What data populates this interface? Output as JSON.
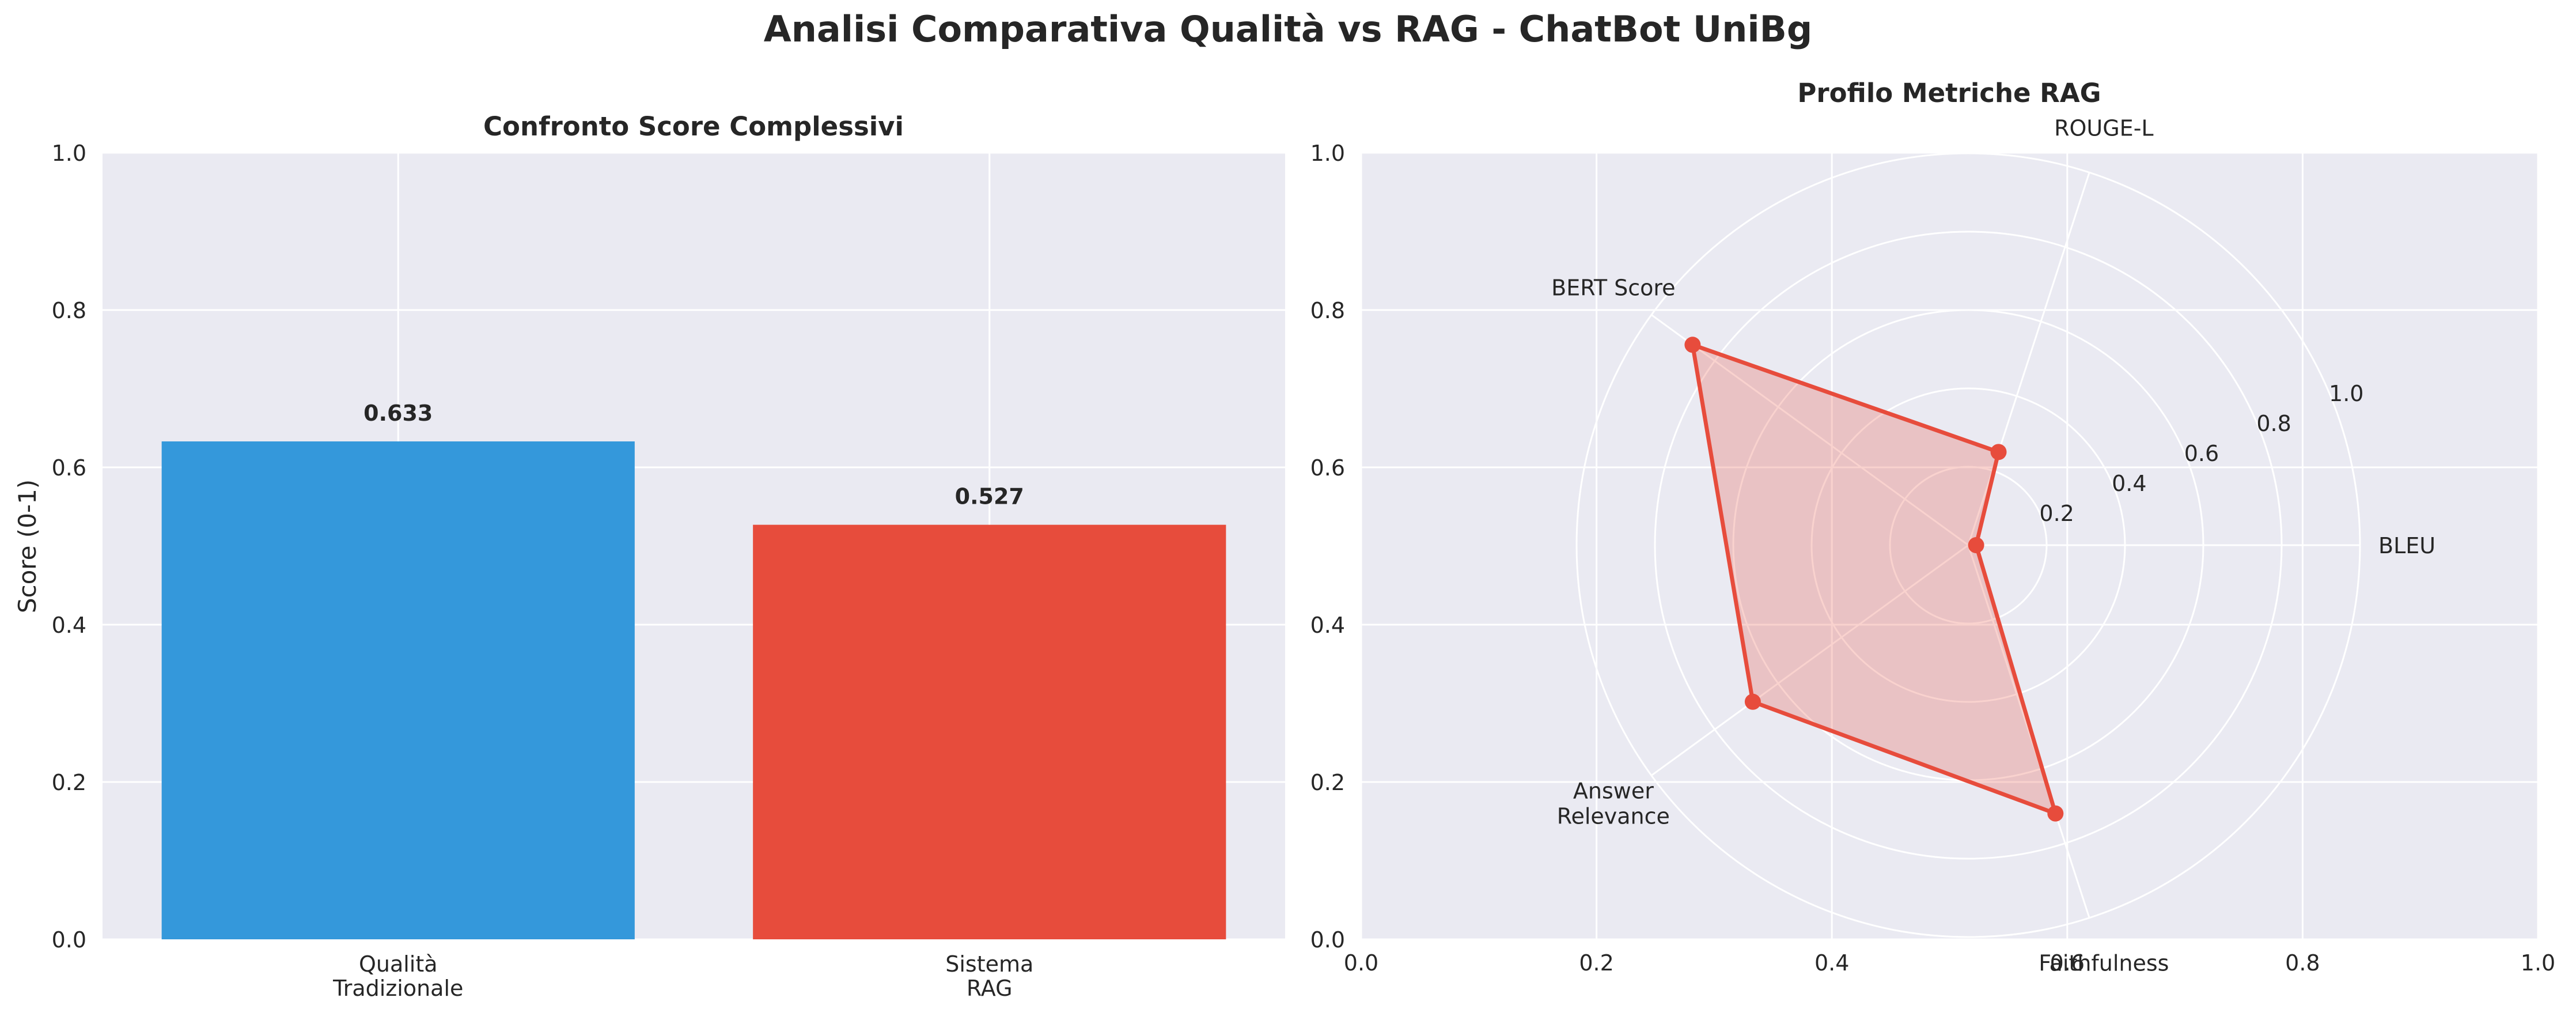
{
  "figure": {
    "title": "Analisi Comparativa Qualità vs RAG - ChatBot UniBg"
  },
  "colors": {
    "panel_bg": "#EAEAF2",
    "grid": "#FFFFFF",
    "bar_quality": "#3498DB",
    "bar_rag": "#E74C3C",
    "radar_line": "#E74C3C"
  },
  "chart_data": [
    {
      "type": "bar",
      "title": "Confronto Score Complessivi",
      "xlabel": "",
      "ylabel": "Score (0-1)",
      "ylim": [
        0,
        1.0
      ],
      "yticks": [
        "0.0",
        "0.2",
        "0.4",
        "0.6",
        "0.8",
        "1.0"
      ],
      "categories": [
        "Qualità\nTradizionale",
        "Sistema\nRAG"
      ],
      "values": [
        0.633,
        0.527
      ],
      "data_labels": [
        "0.633",
        "0.527"
      ],
      "grid": true
    },
    {
      "type": "radar",
      "title": "Profilo Metriche RAG",
      "axes": [
        "BLEU",
        "ROUGE-L",
        "BERT Score",
        "Answer\nRelevance",
        "Faithfulness"
      ],
      "values": [
        0.02,
        0.25,
        0.87,
        0.68,
        0.72
      ],
      "rlim": [
        0,
        1.0
      ],
      "rticks": [
        "0.2",
        "0.4",
        "0.6",
        "0.8",
        "1.0"
      ],
      "cartesian_frame": {
        "xlim": [
          0,
          1.0
        ],
        "ylim": [
          0,
          1.0
        ],
        "xticks": [
          "0.0",
          "0.2",
          "0.4",
          "0.6",
          "0.8",
          "1.0"
        ],
        "yticks": [
          "0.0",
          "0.2",
          "0.4",
          "0.6",
          "0.8",
          "1.0"
        ]
      },
      "grid": true
    }
  ]
}
